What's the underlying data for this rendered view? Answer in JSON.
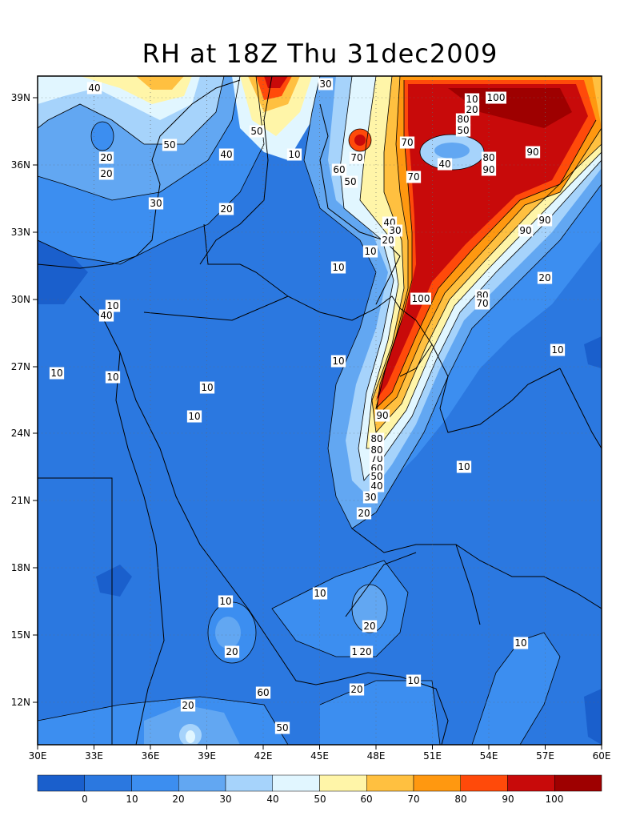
{
  "title": "RH at 18Z Thu 31dec2009",
  "map": {
    "lon_labels": [
      "30E",
      "33E",
      "36E",
      "39E",
      "42E",
      "45E",
      "48E",
      "51E",
      "54E",
      "57E",
      "60E"
    ],
    "lat_labels": [
      "12N",
      "15N",
      "18N",
      "21N",
      "24N",
      "27N",
      "30N",
      "33N",
      "36N",
      "39N"
    ],
    "contour_labels": [
      "40",
      "50",
      "50",
      "40",
      "20",
      "20",
      "30",
      "20",
      "10",
      "10",
      "10",
      "10",
      "10",
      "10",
      "10",
      "10",
      "10",
      "10",
      "10",
      "10",
      "10",
      "20",
      "20",
      "20",
      "20",
      "20",
      "20",
      "10",
      "70",
      "60",
      "50",
      "40",
      "30",
      "20",
      "70",
      "80",
      "90",
      "100",
      "100",
      "80",
      "50",
      "40",
      "70",
      "80",
      "90",
      "90",
      "90",
      "20",
      "10",
      "10",
      "80",
      "70",
      "60",
      "50",
      "40",
      "30",
      "90",
      "80",
      "70",
      "60",
      "50",
      "40",
      "30",
      "10",
      "20"
    ]
  },
  "colorbar": {
    "labels": [
      "0",
      "10",
      "20",
      "30",
      "40",
      "50",
      "60",
      "70",
      "80",
      "90",
      "100"
    ],
    "colors": [
      "#1a5fcc",
      "#2b78e0",
      "#3c8ef0",
      "#62a7f2",
      "#a6d3fb",
      "#e1f6ff",
      "#fff5a8",
      "#ffc040",
      "#ff9810",
      "#ff4a0a",
      "#c80a0a",
      "#9e0000"
    ]
  }
}
